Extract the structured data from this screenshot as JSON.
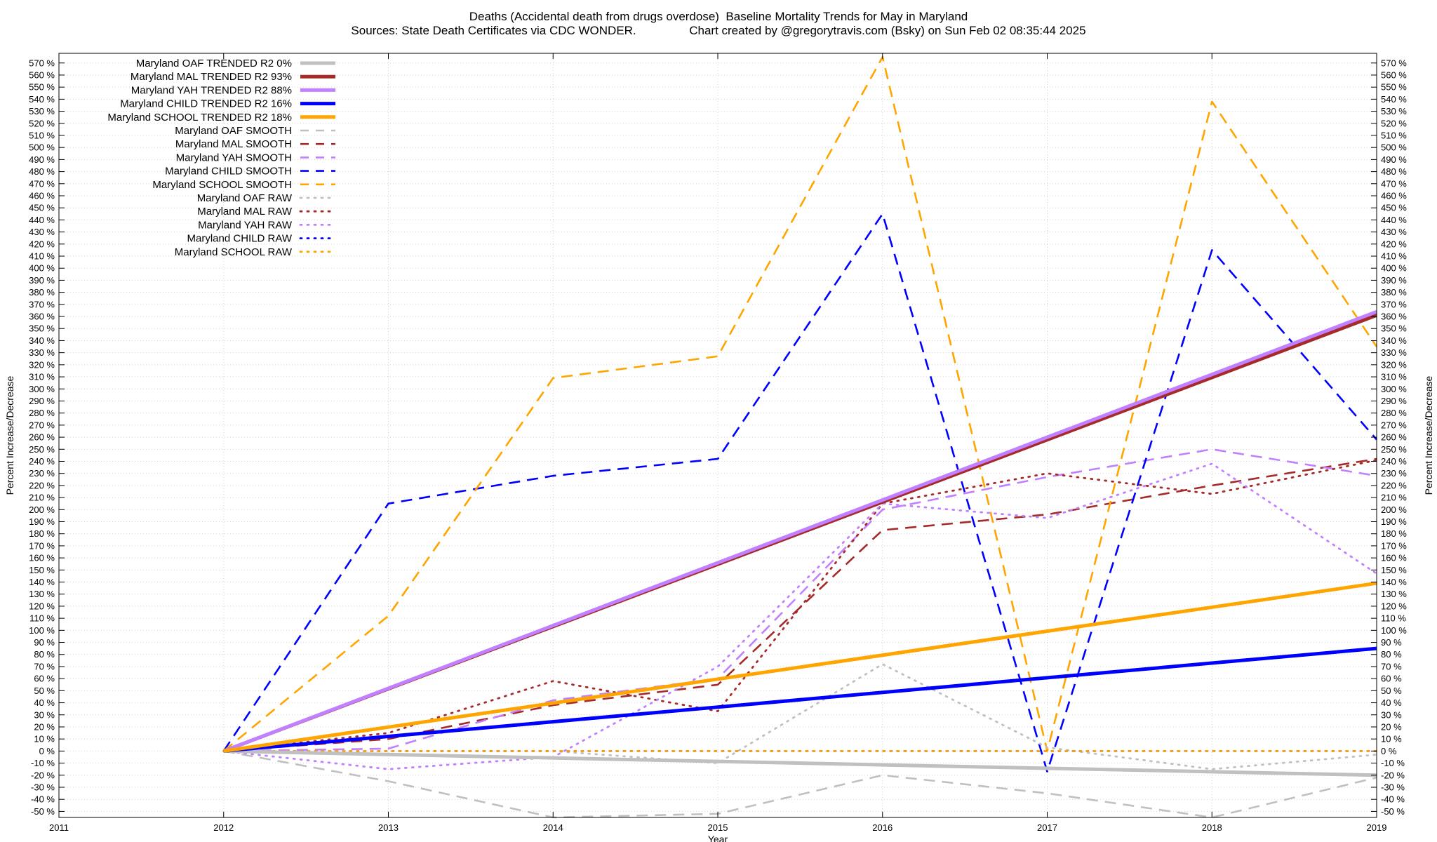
{
  "chart_data": {
    "type": "line",
    "title": "Deaths (Accidental death from drugs overdose)  Baseline Mortality Trends for May in Maryland",
    "subtitle": "Sources: State Death Certificates via CDC WONDER.                Chart created by @gregorytravis.com (Bsky) on Sun Feb 02 08:35:44 2025",
    "xlabel": "Year",
    "ylabel": "Percent Increase/Decrease",
    "y2label": "Percent Increase/Decrease",
    "xlim": [
      2011,
      2019
    ],
    "ylim": [
      -55,
      578
    ],
    "x_ticks": [
      2011,
      2012,
      2013,
      2014,
      2015,
      2016,
      2017,
      2018,
      2019
    ],
    "y_ticks": [
      -50,
      -40,
      -30,
      -20,
      -10,
      0,
      10,
      20,
      30,
      40,
      50,
      60,
      70,
      80,
      90,
      100,
      110,
      120,
      130,
      140,
      150,
      160,
      170,
      180,
      190,
      200,
      210,
      220,
      230,
      240,
      250,
      260,
      270,
      280,
      290,
      300,
      310,
      320,
      330,
      340,
      350,
      360,
      370,
      380,
      390,
      400,
      410,
      420,
      430,
      440,
      450,
      460,
      470,
      480,
      490,
      500,
      510,
      520,
      530,
      540,
      550,
      560,
      570
    ],
    "tick_suffix": " %",
    "grid": true,
    "legend_position": "top-left",
    "series": [
      {
        "name": "Maryland OAF TRENDED R2  0%",
        "color": "#c0c0c0",
        "style": "solid",
        "x": [
          2012,
          2019
        ],
        "y": [
          0,
          -20
        ]
      },
      {
        "name": "Maryland MAL TRENDED R2  93%",
        "color": "#a52a2a",
        "style": "solid",
        "x": [
          2012,
          2019
        ],
        "y": [
          0,
          361
        ]
      },
      {
        "name": "Maryland YAH TRENDED R2  88%",
        "color": "#c080ff",
        "style": "solid",
        "x": [
          2012,
          2019
        ],
        "y": [
          0,
          364
        ]
      },
      {
        "name": "Maryland CHILD TRENDED R2  16%",
        "color": "#0000ff",
        "style": "solid",
        "x": [
          2012,
          2019
        ],
        "y": [
          0,
          85
        ]
      },
      {
        "name": "Maryland SCHOOL TRENDED R2  18%",
        "color": "#ffa500",
        "style": "solid",
        "x": [
          2012,
          2019
        ],
        "y": [
          0,
          139
        ]
      },
      {
        "name": "Maryland OAF SMOOTH",
        "color": "#c0c0c0",
        "style": "dashed",
        "x": [
          2012,
          2013,
          2014,
          2015,
          2016,
          2017,
          2018,
          2019
        ],
        "y": [
          0,
          -25,
          -55,
          -52,
          -20,
          -35,
          -55,
          -22
        ]
      },
      {
        "name": "Maryland MAL SMOOTH",
        "color": "#a52a2a",
        "style": "dashed",
        "x": [
          2012,
          2013,
          2014,
          2015,
          2016,
          2017,
          2018,
          2019
        ],
        "y": [
          0,
          10,
          38,
          55,
          183,
          196,
          220,
          242
        ]
      },
      {
        "name": "Maryland YAH SMOOTH",
        "color": "#c080ff",
        "style": "dashed",
        "x": [
          2012,
          2013,
          2014,
          2015,
          2016,
          2017,
          2018,
          2019
        ],
        "y": [
          0,
          2,
          42,
          60,
          200,
          227,
          250,
          228
        ]
      },
      {
        "name": "Maryland CHILD SMOOTH",
        "color": "#0000ff",
        "style": "dashed",
        "x": [
          2012,
          2013,
          2014,
          2015,
          2016,
          2017,
          2018,
          2019
        ],
        "y": [
          0,
          205,
          228,
          242,
          445,
          -17,
          415,
          258
        ]
      },
      {
        "name": "Maryland SCHOOL SMOOTH",
        "color": "#ffa500",
        "style": "dashed",
        "x": [
          2012,
          2013,
          2014,
          2015,
          2016,
          2017,
          2018,
          2019
        ],
        "y": [
          0,
          112,
          309,
          327,
          575,
          0,
          538,
          335
        ]
      },
      {
        "name": "Maryland OAF RAW",
        "color": "#c0c0c0",
        "style": "dotted",
        "x": [
          2012,
          2013,
          2014,
          2015,
          2016,
          2017,
          2018,
          2019
        ],
        "y": [
          0,
          0,
          0,
          -10,
          72,
          3,
          -15,
          -3
        ]
      },
      {
        "name": "Maryland MAL RAW",
        "color": "#a52a2a",
        "style": "dotted",
        "x": [
          2012,
          2013,
          2014,
          2015,
          2016,
          2017,
          2018,
          2019
        ],
        "y": [
          0,
          15,
          58,
          33,
          205,
          230,
          213,
          241
        ]
      },
      {
        "name": "Maryland YAH RAW",
        "color": "#c080ff",
        "style": "dotted",
        "x": [
          2012,
          2013,
          2014,
          2015,
          2016,
          2017,
          2018,
          2019
        ],
        "y": [
          0,
          -15,
          -5,
          70,
          205,
          193,
          238,
          147
        ]
      },
      {
        "name": "Maryland CHILD RAW",
        "color": "#0000ff",
        "style": "dotted",
        "x": [
          2012,
          2013,
          2014,
          2015,
          2016,
          2017,
          2018,
          2019
        ],
        "y": [
          0,
          0,
          0,
          0,
          0,
          0,
          0,
          0
        ]
      },
      {
        "name": "Maryland SCHOOL RAW",
        "color": "#ffa500",
        "style": "dotted",
        "x": [
          2012,
          2013,
          2014,
          2015,
          2016,
          2017,
          2018,
          2019
        ],
        "y": [
          0,
          0,
          0,
          0,
          0,
          0,
          0,
          0
        ]
      }
    ]
  }
}
